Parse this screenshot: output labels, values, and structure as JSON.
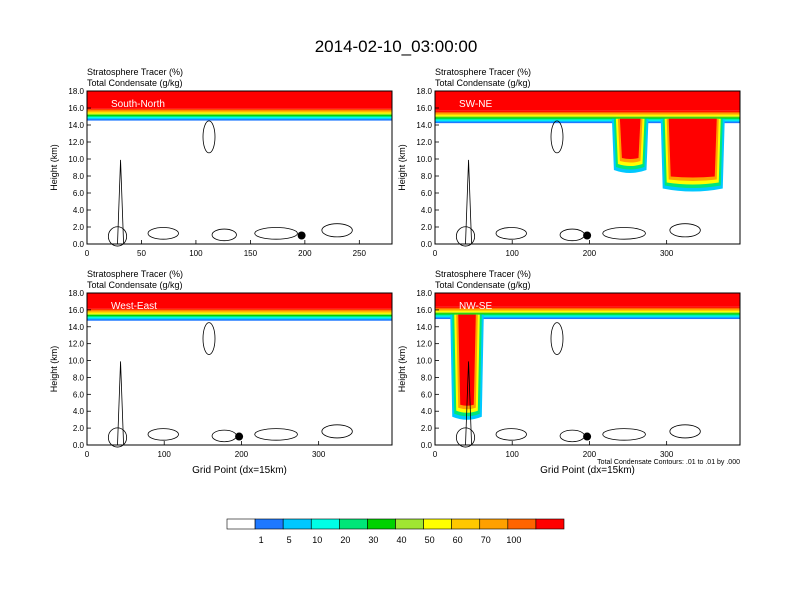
{
  "title": "2014-02-10_03:00:00",
  "colorbar": {
    "colors": [
      "#ffffff",
      "#1e78ff",
      "#00c8ff",
      "#00ffe6",
      "#00e678",
      "#00d200",
      "#a0e632",
      "#ffff00",
      "#ffc800",
      "#ffa000",
      "#ff6400",
      "#ff0000"
    ],
    "labels": [
      "1",
      "5",
      "10",
      "20",
      "30",
      "40",
      "50",
      "60",
      "70",
      "100"
    ]
  },
  "chart_data": [
    {
      "type": "heatmap",
      "panel": "South-North",
      "title_line1": "Stratosphere Tracer   (%)",
      "title_line2": "Total Condensate   (g/kg)",
      "xlabel": "",
      "ylabel": "Height (km)",
      "xlim": [
        0,
        280
      ],
      "ylim": [
        0,
        18
      ],
      "xticks": [
        "0",
        "50",
        "100",
        "150",
        "200",
        "250"
      ],
      "xtick_values": [
        0,
        50,
        100,
        150,
        200,
        250
      ],
      "yticks": [
        "0.0",
        "2.0",
        "4.0",
        "6.0",
        "8.0",
        "10.0",
        "12.0",
        "14.0",
        "16.0",
        "18.0"
      ],
      "marker_x": 197,
      "marker_y": 1.0,
      "tracer_base_km": 14.8
    },
    {
      "type": "heatmap",
      "panel": "SW-NE",
      "title_line1": "Stratosphere Tracer   (%)",
      "title_line2": "Total Condensate   (g/kg)",
      "xlabel": "",
      "ylabel": "Height (km)",
      "xlim": [
        0,
        395
      ],
      "ylim": [
        0,
        18
      ],
      "xticks": [
        "0",
        "100",
        "200",
        "300"
      ],
      "xtick_values": [
        0,
        100,
        200,
        300
      ],
      "yticks": [
        "0.0",
        "2.0",
        "4.0",
        "6.0",
        "8.0",
        "10.0",
        "12.0",
        "14.0",
        "16.0",
        "18.0"
      ],
      "marker_x": 197,
      "marker_y": 1.0,
      "tracer_base_km": 14.5
    },
    {
      "type": "heatmap",
      "panel": "West-East",
      "title_line1": "Stratosphere Tracer   (%)",
      "title_line2": "Total Condensate   (g/kg)",
      "xlabel": "Grid Point (dx=15km)",
      "ylabel": "Height (km)",
      "xlim": [
        0,
        395
      ],
      "ylim": [
        0,
        18
      ],
      "xticks": [
        "0",
        "100",
        "200",
        "300"
      ],
      "xtick_values": [
        0,
        100,
        200,
        300
      ],
      "yticks": [
        "0.0",
        "2.0",
        "4.0",
        "6.0",
        "8.0",
        "10.0",
        "12.0",
        "14.0",
        "16.0",
        "18.0"
      ],
      "marker_x": 197,
      "marker_y": 1.0,
      "tracer_base_km": 15.0
    },
    {
      "type": "heatmap",
      "panel": "NW-SE",
      "title_line1": "Stratosphere Tracer   (%)",
      "title_line2": "Total Condensate   (g/kg)",
      "xlabel": "Grid Point (dx=15km)",
      "ylabel": "Height (km)",
      "xlim": [
        0,
        395
      ],
      "ylim": [
        0,
        18
      ],
      "xticks": [
        "0",
        "100",
        "200",
        "300"
      ],
      "xtick_values": [
        0,
        100,
        200,
        300
      ],
      "yticks": [
        "0.0",
        "2.0",
        "4.0",
        "6.0",
        "8.0",
        "10.0",
        "12.0",
        "14.0",
        "16.0",
        "18.0"
      ],
      "marker_x": 197,
      "marker_y": 1.0,
      "tracer_base_km": 15.2,
      "footnote": "Total Condensate Contours: .01 to .01 by .000"
    }
  ]
}
